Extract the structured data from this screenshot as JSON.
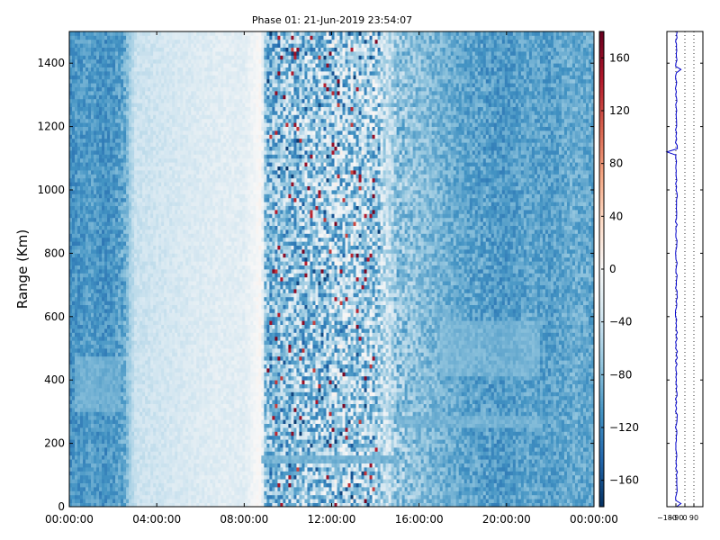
{
  "chart_data": [
    {
      "type": "heatmap",
      "title": "Phase 01: 21-Jun-2019 23:54:07",
      "xlabel": "",
      "ylabel": "Range (Km)",
      "xticks": [
        "00:00:00",
        "04:00:00",
        "08:00:00",
        "12:00:00",
        "16:00:00",
        "20:00:00",
        "00:00:00"
      ],
      "xlim_hours": [
        0,
        24
      ],
      "ylim": [
        0,
        1500
      ],
      "yticks": [
        0,
        200,
        400,
        600,
        800,
        1000,
        1200,
        1400
      ],
      "colorbar": {
        "range": [
          -180,
          180
        ],
        "ticks": [
          -160,
          -120,
          -80,
          -40,
          0,
          40,
          80,
          120,
          160
        ],
        "tick_labels": [
          "−160",
          "−120",
          "−80",
          "−40",
          "0",
          "40",
          "80",
          "120",
          "160"
        ],
        "colormap": "RdBu_r",
        "colors": [
          "#053061",
          "#2166ac",
          "#4393c3",
          "#92c5de",
          "#d1e5f0",
          "#f7f7f7",
          "#fddbc7",
          "#f4a582",
          "#d6604d",
          "#b2182b",
          "#67001f"
        ]
      },
      "column_profile_hours": [
        0,
        0.5,
        1,
        1.5,
        2,
        2.5,
        2.8,
        3,
        4,
        5,
        6,
        7,
        8,
        8.8,
        9,
        10,
        11,
        12,
        13,
        14,
        14.6,
        15,
        16,
        17,
        18,
        19,
        20,
        21,
        22,
        23,
        24
      ],
      "column_profile_mean_phase": [
        -110,
        -105,
        -100,
        -110,
        -105,
        -95,
        -60,
        -40,
        -35,
        -30,
        -25,
        -20,
        -20,
        5,
        -80,
        -70,
        -65,
        -60,
        -55,
        -60,
        -40,
        -70,
        -75,
        -85,
        -95,
        -100,
        -105,
        -95,
        -100,
        -90,
        -95
      ],
      "column_profile_spread": [
        20,
        20,
        18,
        20,
        20,
        25,
        10,
        10,
        10,
        10,
        10,
        10,
        10,
        5,
        55,
        60,
        65,
        70,
        65,
        65,
        30,
        40,
        25,
        20,
        20,
        25,
        20,
        20,
        20,
        20,
        20
      ],
      "features": [
        {
          "label": "horizontal echo layer",
          "range_km": 150,
          "from_hour": 8.8,
          "to_hour": 15.0
        },
        {
          "label": "horizontal echo layer",
          "range_km": 270,
          "from_hour": 15.0,
          "to_hour": 21.5
        },
        {
          "label": "diffuse echo",
          "range_km": 390,
          "from_hour": 0.3,
          "to_hour": 2.3
        },
        {
          "label": "diffuse echo",
          "range_km": 500,
          "from_hour": 17.0,
          "to_hour": 21.5
        }
      ]
    },
    {
      "type": "line",
      "title": "",
      "xlabel": "",
      "ylabel": "",
      "xlim": [
        -180,
        180
      ],
      "ylim": [
        0,
        1500
      ],
      "xticks": [
        -180,
        -90,
        0,
        90
      ],
      "xtick_labels": [
        "−180",
        "−90",
        "0",
        "90"
      ],
      "grid_x": [
        -90,
        0,
        90
      ],
      "series": [
        {
          "color": "#0000cc",
          "mean": -85,
          "spread": 10,
          "samples": 150,
          "spikes": [
            {
              "range_km": 1120,
              "value": -180
            },
            {
              "range_km": 1380,
              "value": -40
            },
            {
              "range_km": 10,
              "value": -40
            }
          ]
        }
      ]
    }
  ]
}
